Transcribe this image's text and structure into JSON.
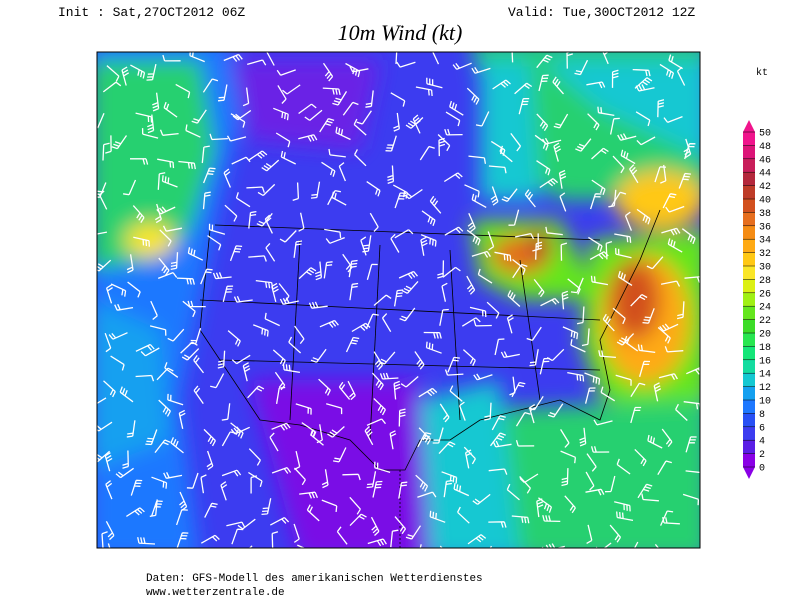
{
  "header": {
    "init": "Init : Sat,27OCT2012 06Z",
    "valid": "Valid: Tue,30OCT2012 12Z",
    "title": "10m Wind (kt)"
  },
  "colorbar": {
    "unit": "kt",
    "ticks": [
      0,
      2,
      4,
      6,
      8,
      10,
      12,
      14,
      16,
      18,
      20,
      22,
      24,
      26,
      28,
      30,
      32,
      34,
      36,
      38,
      40,
      42,
      44,
      46,
      48,
      50
    ],
    "colors": [
      "#8a00e6",
      "#5a1ee6",
      "#3c3cf0",
      "#2850f5",
      "#1e78ff",
      "#14a0f0",
      "#14c8d2",
      "#14dca0",
      "#14e678",
      "#28e650",
      "#3cdc28",
      "#64e61e",
      "#a0f014",
      "#dcf014",
      "#fae628",
      "#ffc814",
      "#ffaa14",
      "#f58c14",
      "#e66e1e",
      "#d2501e",
      "#be3c28",
      "#b4283c",
      "#c81e5a",
      "#dc1478",
      "#f0148c"
    ]
  },
  "footer": {
    "source": "Daten: GFS-Modell des amerikanischen Wetterdienstes",
    "url": "www.wetterzentrale.de"
  }
}
